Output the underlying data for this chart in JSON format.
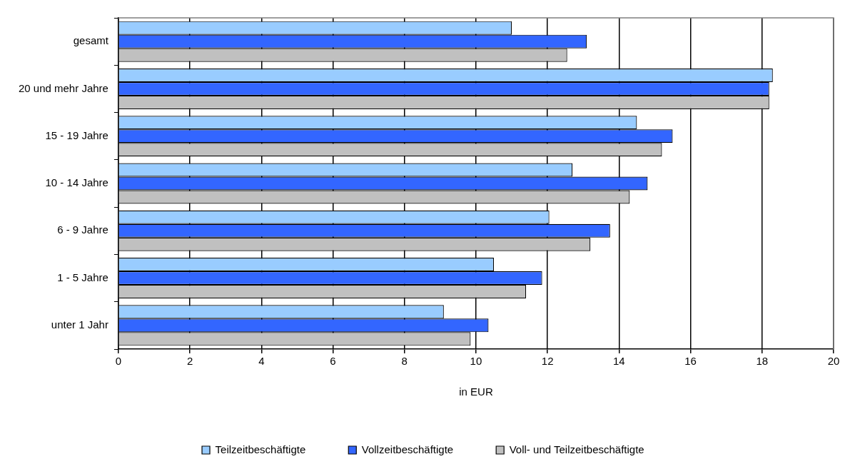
{
  "chart_data": {
    "type": "bar",
    "orientation": "horizontal",
    "xlabel": "in EUR",
    "categories": [
      "gesamt",
      "20 und mehr Jahre",
      "15 - 19 Jahre",
      "10 - 14 Jahre",
      "6 - 9 Jahre",
      "1 - 5 Jahre",
      "unter 1 Jahr"
    ],
    "series": [
      {
        "name": "Teilzeitbeschäftigte",
        "color": "#99ccff",
        "values": [
          11.0,
          18.3,
          14.5,
          12.7,
          12.05,
          10.5,
          9.1
        ]
      },
      {
        "name": "Vollzeitbeschäftigte",
        "color": "#3366ff",
        "values": [
          13.1,
          18.2,
          15.5,
          14.8,
          13.75,
          11.85,
          10.35
        ]
      },
      {
        "name": "Voll- und Teilzeitbeschäftigte",
        "color": "#c0c0c0",
        "values": [
          12.55,
          18.2,
          15.2,
          14.3,
          13.2,
          11.4,
          9.85
        ]
      }
    ],
    "xlim": [
      0,
      20
    ],
    "xticks": [
      0,
      2,
      4,
      6,
      8,
      10,
      12,
      14,
      16,
      18,
      20
    ],
    "grid": "x",
    "legend": "bottom"
  }
}
